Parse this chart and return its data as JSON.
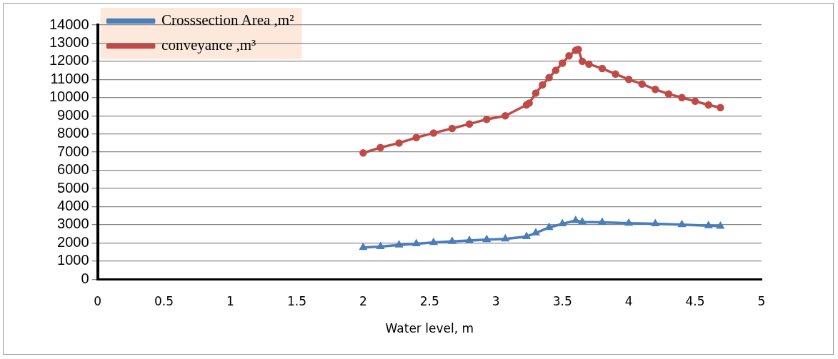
{
  "chart_data": {
    "type": "line",
    "xlabel": "Water level, m",
    "xlim": [
      0,
      5
    ],
    "xticks": [
      0,
      0.5,
      1,
      1.5,
      2,
      2.5,
      3,
      3.5,
      4,
      4.5,
      5
    ],
    "ylim": [
      0,
      14000
    ],
    "yticks": [
      0,
      1000,
      2000,
      3000,
      4000,
      5000,
      6000,
      7000,
      8000,
      9000,
      10000,
      11000,
      12000,
      13000,
      14000
    ],
    "grid": "y",
    "legend": "top left",
    "series": [
      {
        "name": "Crosssection Area ,m²",
        "color": "#4a7ebb",
        "marker": "triangle",
        "x": [
          2.0,
          2.13,
          2.27,
          2.4,
          2.53,
          2.67,
          2.8,
          2.93,
          3.07,
          3.23,
          3.3,
          3.4,
          3.5,
          3.6,
          3.65,
          3.8,
          4.0,
          4.2,
          4.4,
          4.6,
          4.69
        ],
        "values": [
          1750,
          1800,
          1880,
          1950,
          2020,
          2080,
          2130,
          2180,
          2220,
          2350,
          2550,
          2850,
          3050,
          3230,
          3150,
          3130,
          3080,
          3050,
          3000,
          2950,
          2920
        ]
      },
      {
        "name": "conveyance ,m³",
        "color": "#be4b48",
        "marker": "circle",
        "x": [
          2.0,
          2.13,
          2.27,
          2.4,
          2.53,
          2.67,
          2.8,
          2.93,
          3.07,
          3.23,
          3.25,
          3.3,
          3.35,
          3.4,
          3.45,
          3.5,
          3.55,
          3.6,
          3.62,
          3.65,
          3.7,
          3.8,
          3.9,
          4.0,
          4.1,
          4.2,
          4.3,
          4.4,
          4.5,
          4.6,
          4.69
        ],
        "values": [
          6950,
          7250,
          7500,
          7800,
          8050,
          8300,
          8550,
          8800,
          9000,
          9600,
          9700,
          10250,
          10700,
          11100,
          11500,
          11900,
          12300,
          12600,
          12650,
          12000,
          11850,
          11600,
          11300,
          11000,
          10750,
          10450,
          10200,
          10000,
          9800,
          9600,
          9450
        ]
      }
    ]
  }
}
